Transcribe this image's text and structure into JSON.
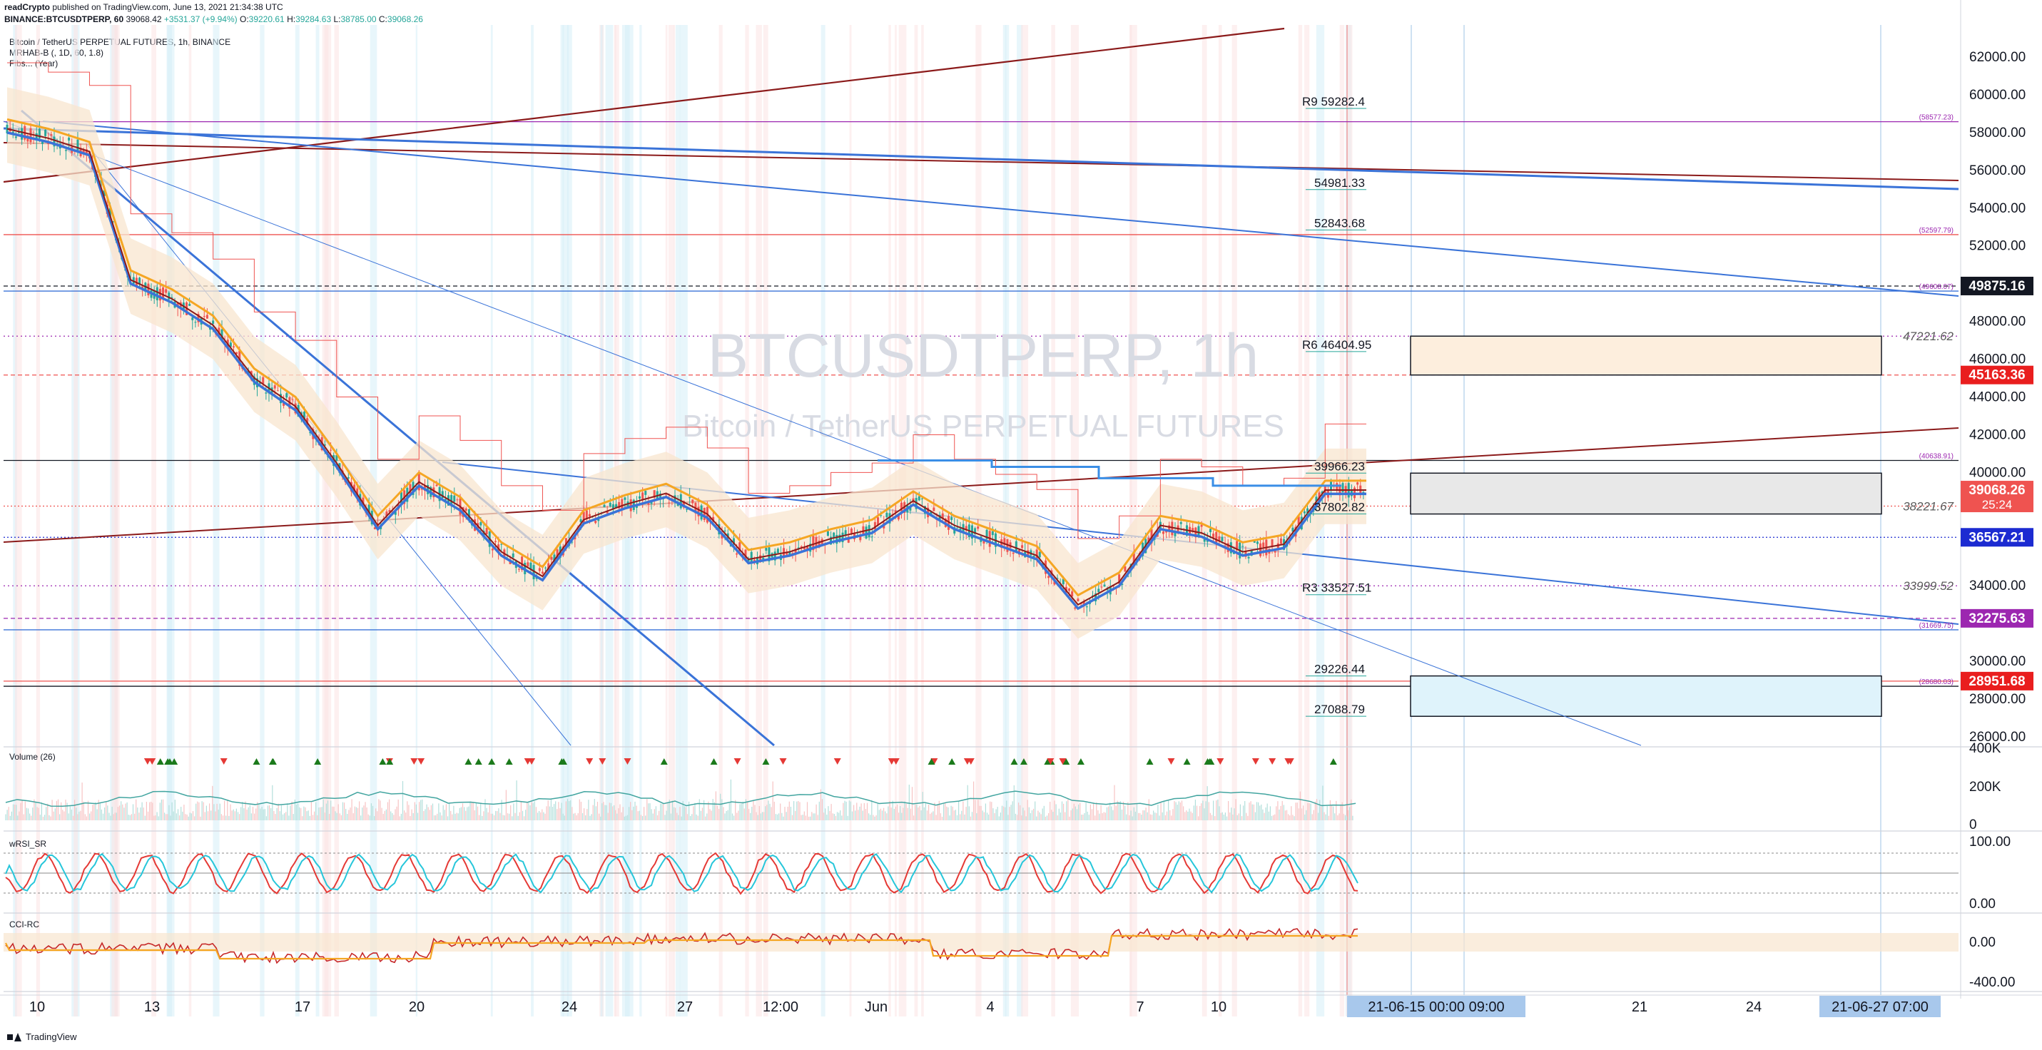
{
  "header": {
    "publisher": "readCrypto",
    "published_text": "published on TradingView.com, June 13, 2021 21:34:38 UTC",
    "symbol_line_prefix": "BINANCE:BTCUSDTPERP, 60",
    "last_value": "39068.42",
    "change": "+3531.37 (+9.94%)",
    "o_label": "O:",
    "o_value": "39220.61",
    "h_label": "H:",
    "h_value": "39284.63",
    "l_label": "L:",
    "l_value": "38785.00",
    "c_label": "C:",
    "c_value": "39068.26"
  },
  "legend": {
    "symbol_name": "Bitcoin / TetherUS PERPETUAL FUTURES, 1h, BINANCE",
    "indicator_1": "MRHAB-B (, 1D, 60, 1.8)",
    "indicator_2": "Fibs... (Year)"
  },
  "watermark": {
    "symbol": "BTCUSDTPERP, 1h",
    "description": "Bitcoin / TetherUS PERPETUAL FUTURES"
  },
  "panes": {
    "volume_label": "Volume (26)",
    "wrsi_label": "wRSI_SR",
    "cci_label": "CCI-RC"
  },
  "footer": {
    "brand": "TradingView"
  },
  "colors": {
    "up": "#26a69a",
    "down": "#ef5350",
    "dark_red": "#8b1a1a",
    "blue": "#3a73d8",
    "orange": "#f5a623",
    "purple": "#9c27b0",
    "navy": "#1c2bd1",
    "green_line": "#1b7a1b",
    "cloud": "#f8e6cf"
  },
  "chart_data": {
    "type": "line",
    "title": "Bitcoin / TetherUS PERPETUAL FUTURES, 1h, BINANCE",
    "y_axis": {
      "range": [
        25000,
        63000
      ],
      "ticks": [
        "62000.00",
        "60000.00",
        "58000.00",
        "56000.00",
        "54000.00",
        "52000.00",
        "48000.00",
        "46000.00",
        "44000.00",
        "42000.00",
        "40000.00",
        "34000.00",
        "30000.00",
        "28000.00",
        "26000.00"
      ]
    },
    "x_axis": {
      "ticks": [
        "10",
        "13",
        "17",
        "20",
        "24",
        "27",
        "12:00",
        "Jun",
        "4",
        "7",
        "10",
        "21",
        "24"
      ],
      "highlighted_ticks": [
        "21-06-15  00:00  09:00",
        "21-06-27  07:00"
      ]
    },
    "price_series": {
      "name": "BTCUSDTPERP",
      "x": [
        10,
        11,
        12,
        13,
        14,
        15,
        16,
        17,
        18,
        19,
        20,
        21,
        22,
        23,
        24,
        25,
        26,
        27,
        28,
        29,
        30,
        31,
        32,
        33,
        34,
        35,
        36,
        37,
        38,
        39,
        40,
        41,
        42,
        43
      ],
      "close": [
        58200,
        57700,
        57000,
        50200,
        49200,
        47800,
        45000,
        43500,
        40500,
        37200,
        39500,
        38200,
        35800,
        34500,
        37500,
        38300,
        38900,
        37800,
        35400,
        35800,
        36500,
        37000,
        38500,
        37200,
        36400,
        35600,
        33000,
        34200,
        37200,
        36800,
        35800,
        36200,
        39068,
        39068
      ]
    },
    "price_labels_right": [
      {
        "value": "49875.16",
        "price": 49875.16,
        "bg": "#131722"
      },
      {
        "value": "45163.36",
        "price": 45163.36,
        "bg": "#e91e1e"
      },
      {
        "value": "39068.26",
        "price": 39068.26,
        "bg": "#ef5350",
        "sub": "25:24"
      },
      {
        "value": "36567.21",
        "price": 36567.21,
        "bg": "#1c2bd1"
      },
      {
        "value": "32275.63",
        "price": 32275.63,
        "bg": "#9c27b0"
      },
      {
        "value": "28951.68",
        "price": 28951.68,
        "bg": "#e91e1e"
      }
    ],
    "level_labels": [
      {
        "text": "R9  59282.4",
        "price": 59282.4
      },
      {
        "text": "54981.33",
        "price": 54981.33
      },
      {
        "text": "52843.68",
        "price": 52843.68
      },
      {
        "text": "R6  46404.95",
        "price": 46404.95
      },
      {
        "text": "39966.23",
        "price": 39966.23
      },
      {
        "text": "37802.82",
        "price": 37802.82
      },
      {
        "text": "R3  33527.51",
        "price": 33527.51
      },
      {
        "text": "29226.44",
        "price": 29226.44
      },
      {
        "text": "27088.79",
        "price": 27088.79
      }
    ],
    "right_small_labels": [
      {
        "text": "(58577.23)",
        "price": 58577.23
      },
      {
        "text": "(52597.79)",
        "price": 52597.79
      },
      {
        "text": "(49608.07)",
        "price": 49608.07
      },
      {
        "text": "47221.62",
        "price": 47221.62
      },
      {
        "text": "(40638.91)",
        "price": 40638.91
      },
      {
        "text": "38221.67",
        "price": 38221.67
      },
      {
        "text": "33999.52",
        "price": 33999.52
      },
      {
        "text": "(31669.75)",
        "price": 31669.75
      },
      {
        "text": "(28680.03)",
        "price": 28680.03
      }
    ],
    "volume_axis_ticks": [
      "400K",
      "200K",
      "0"
    ],
    "wrsi_axis_ticks": [
      "100.00",
      "0.00"
    ],
    "cci_axis_ticks": [
      "0.00",
      "-400.00"
    ]
  }
}
